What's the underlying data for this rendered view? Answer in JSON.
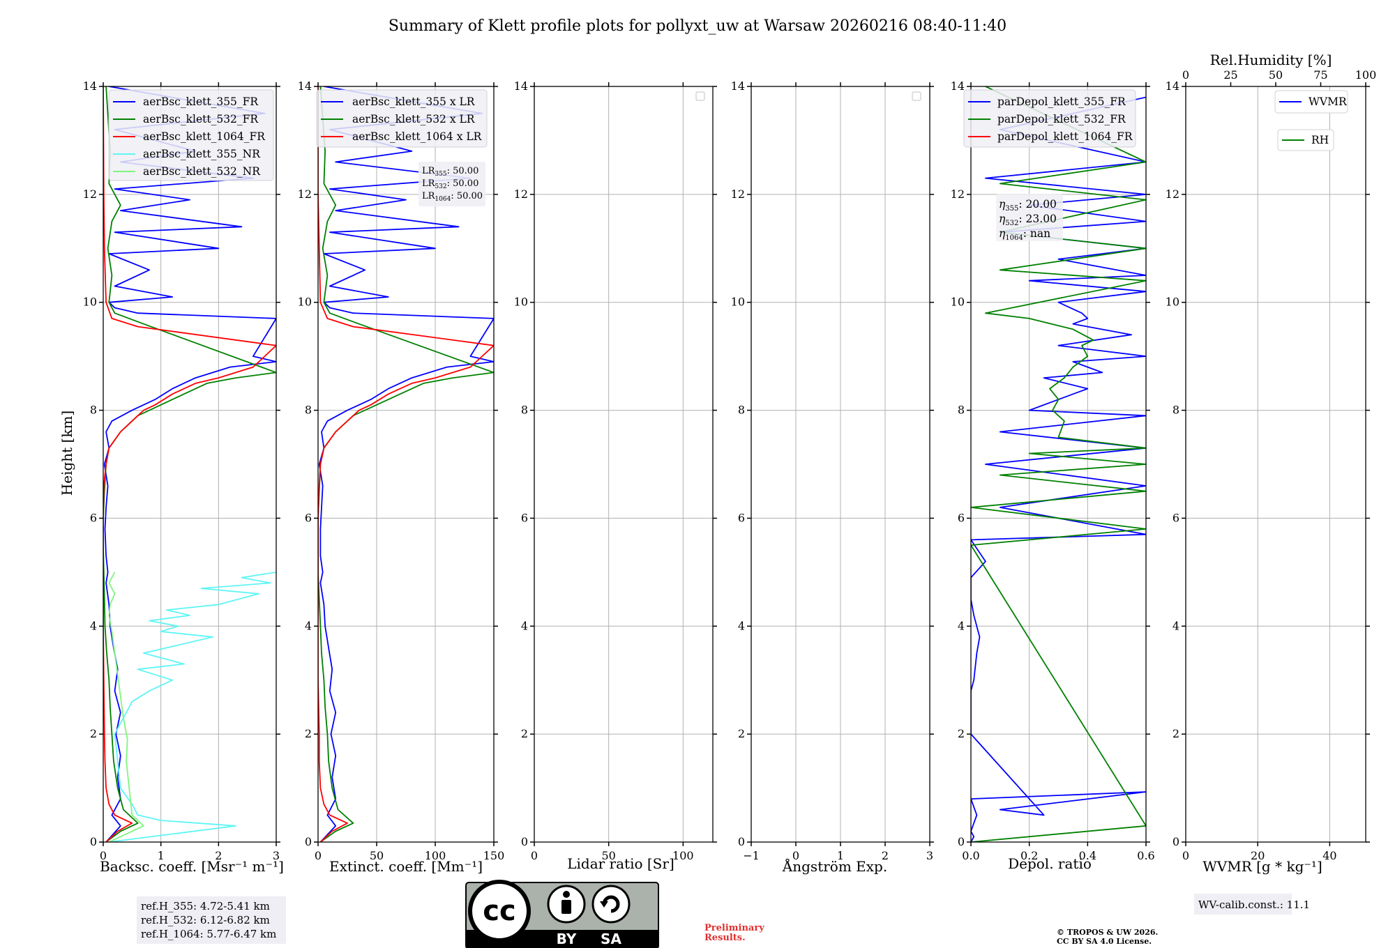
{
  "title": "Summary of Klett profile plots for pollyxt_uw at Warsaw 20260216 08:40-11:40",
  "height_label": "Height [km]",
  "height_range": [
    0,
    14
  ],
  "height_ticks": [
    "0",
    "2",
    "4",
    "6",
    "8",
    "10",
    "12",
    "14"
  ],
  "colors": {
    "c355": "#0000ff",
    "c532": "#008000",
    "c1064": "#ff0000",
    "c355nr": "#5ff5f5",
    "c532nr": "#7ff57f",
    "grid": "#b0b0b0",
    "legend_bg": "#eeeef4",
    "prelim": "#e03030"
  },
  "panels": {
    "backscatter": {
      "xlabel": "Backsc. coeff. [Msr⁻¹ m⁻¹]",
      "xlim": [
        0,
        3
      ],
      "xticks": [
        "0",
        "1",
        "2",
        "3"
      ],
      "legend": [
        "aerBsc_klett_355_FR",
        "aerBsc_klett_532_FR",
        "aerBsc_klett_1064_FR",
        "aerBsc_klett_355_NR",
        "aerBsc_klett_532_NR"
      ]
    },
    "extinction": {
      "xlabel": "Extinct. coeff. [Mm⁻¹]",
      "xlim": [
        0,
        150
      ],
      "xticks": [
        "0",
        "50",
        "100",
        "150"
      ],
      "legend": [
        "aerBsc_klett_355 x LR",
        "aerBsc_klett_532 x LR",
        "aerBsc_klett_1064 x LR"
      ],
      "lr_box": {
        "lr355_label": "LR",
        "lr355_sub": "355",
        "lr355_val": ": 50.00",
        "lr532_label": "LR",
        "lr532_sub": "532",
        "lr532_val": ": 50.00",
        "lr1064_label": "LR",
        "lr1064_sub": "1064",
        "lr1064_val": ": 50.00"
      }
    },
    "lidar_ratio": {
      "xlabel": "Lidar ratio [Sr]",
      "xlim": [
        0,
        120
      ],
      "xticks": [
        "0",
        "50",
        "100"
      ]
    },
    "angstrom": {
      "xlabel": "Ångström Exp.",
      "xlim": [
        -1,
        3
      ],
      "xticks": [
        "−1",
        "0",
        "1",
        "2",
        "3"
      ]
    },
    "depol": {
      "xlabel": "Depol. ratio",
      "xlim": [
        0,
        0.6
      ],
      "xticks": [
        "0.0",
        "0.2",
        "0.4",
        "0.6"
      ],
      "legend": [
        "parDepol_klett_355_FR",
        "parDepol_klett_532_FR",
        "parDepol_klett_1064_FR"
      ],
      "eta_box": {
        "eta355_label": "η",
        "eta355_sub": "355",
        "eta355_val": ": 20.00",
        "eta532_label": "η",
        "eta532_sub": "532",
        "eta532_val": ": 23.00",
        "eta1064_label": "η",
        "eta1064_sub": "1064",
        "eta1064_val": ": nan"
      }
    },
    "wvmr": {
      "xlabel": "WVMR [g * kg⁻¹]",
      "xlim": [
        0,
        50
      ],
      "xticks": [
        "0",
        "20",
        "40"
      ],
      "top_label": "Rel.Humidity [%]",
      "top_lim": [
        0,
        100
      ],
      "top_ticks": [
        "0",
        "25",
        "50",
        "75",
        "100"
      ],
      "legend_wvmr": "WVMR",
      "legend_rh": "RH"
    }
  },
  "ref_heights": [
    "ref.H_355: 4.72-5.41 km",
    "ref.H_532: 6.12-6.82 km",
    "ref.H_1064: 5.77-6.47 km"
  ],
  "wv_calib": "WV-calib.const.: 11.1",
  "license_badge": {
    "cc": "cc",
    "by": "BY",
    "sa": "SA"
  },
  "preliminary": [
    "Preliminary",
    "Results."
  ],
  "copyright": [
    "© TROPOS & UW 2026.",
    "CC BY SA 4.0 License."
  ],
  "chart_data": [
    {
      "type": "line",
      "title": "",
      "xlabel": "Backsc. coeff. [Msr⁻¹ m⁻¹]",
      "ylabel": "Height [km]",
      "xlim": [
        0,
        3
      ],
      "ylim": [
        0,
        14
      ],
      "series": [
        {
          "name": "aerBsc_klett_355_FR",
          "color": "#0000ff",
          "x": [
            0.05,
            0.3,
            0.15,
            0.3,
            0.25,
            0.3,
            0.22,
            0.3,
            0.2,
            0.25,
            0.18,
            0.12,
            0.1,
            0.05,
            0.08,
            0.05,
            0.03,
            0.05,
            0.08,
            0.02,
            0.1,
            0.05,
            0.15,
            0.5,
            0.9,
            1.2,
            1.6,
            2.2,
            3.0,
            2.6,
            3.0,
            0.6,
            0.2,
            0.1,
            1.2,
            0.2,
            0.8,
            0.1,
            2.0,
            0.2,
            2.4,
            0.3,
            1.5,
            0.2,
            2.6,
            0.3,
            1.6,
            0.2,
            2.8,
            0.1
          ],
          "y": [
            0.0,
            0.3,
            0.5,
            0.8,
            1.2,
            1.6,
            2.0,
            2.4,
            2.8,
            3.2,
            3.6,
            4.0,
            4.4,
            4.8,
            5.0,
            5.3,
            5.8,
            6.2,
            6.6,
            7.0,
            7.3,
            7.6,
            7.8,
            8.0,
            8.2,
            8.4,
            8.6,
            8.8,
            8.9,
            9.0,
            9.7,
            9.8,
            9.9,
            10.0,
            10.1,
            10.3,
            10.6,
            10.9,
            11.0,
            11.3,
            11.4,
            11.7,
            11.9,
            12.1,
            12.3,
            12.6,
            12.8,
            13.2,
            13.5,
            14.0
          ]
        },
        {
          "name": "aerBsc_klett_532_FR",
          "color": "#008000",
          "x": [
            0.05,
            0.3,
            0.6,
            0.35,
            0.25,
            0.18,
            0.15,
            0.12,
            0.1,
            0.06,
            0.03,
            0.02,
            0.01,
            0.0,
            0.0,
            0.02,
            0.05,
            0.1,
            0.3,
            0.6,
            1.0,
            1.4,
            1.8,
            2.3,
            3.0,
            0.7,
            0.2,
            0.1,
            0.15,
            0.08,
            0.15,
            0.3,
            0.1,
            0.12,
            0.05
          ],
          "y": [
            0.0,
            0.2,
            0.35,
            0.6,
            1.0,
            1.5,
            2.0,
            2.5,
            3.0,
            3.5,
            4.0,
            4.5,
            5.0,
            5.5,
            6.0,
            6.5,
            7.0,
            7.3,
            7.6,
            7.9,
            8.1,
            8.3,
            8.5,
            8.6,
            8.7,
            9.6,
            9.8,
            10.0,
            10.5,
            11.0,
            11.5,
            11.8,
            12.2,
            12.8,
            14.0
          ]
        },
        {
          "name": "aerBsc_klett_1064_FR",
          "color": "#ff0000",
          "x": [
            0.05,
            0.25,
            0.5,
            0.2,
            0.1,
            0.05,
            0.03,
            0.02,
            0.01,
            0.0,
            0.0,
            0.0,
            0.01,
            0.05,
            0.1,
            0.3,
            0.6,
            0.7,
            0.9,
            1.2,
            1.6,
            2.0,
            2.6,
            2.8,
            3.0,
            0.6,
            0.15,
            0.05,
            0.02,
            0.01,
            0.0
          ],
          "y": [
            0.0,
            0.2,
            0.35,
            0.5,
            0.7,
            1.0,
            1.5,
            2.0,
            3.0,
            4.0,
            5.0,
            6.0,
            6.6,
            7.0,
            7.3,
            7.6,
            7.9,
            8.0,
            8.1,
            8.3,
            8.5,
            8.6,
            8.8,
            9.0,
            9.2,
            9.55,
            9.7,
            10.0,
            11.0,
            12.0,
            14.0
          ]
        },
        {
          "name": "aerBsc_klett_355_NR",
          "color": "#5ff5f5",
          "x": [
            0.1,
            2.3,
            1.0,
            0.6,
            0.5,
            0.3,
            0.25,
            0.2,
            0.5,
            0.8,
            1.2,
            0.6,
            1.4,
            0.7,
            1.9,
            1.0,
            1.3,
            0.8,
            1.5,
            1.1,
            2.0,
            2.7,
            1.7,
            2.9,
            2.4,
            3.0
          ],
          "y": [
            0.0,
            0.3,
            0.4,
            0.5,
            0.7,
            1.0,
            1.5,
            2.0,
            2.6,
            2.8,
            3.0,
            3.2,
            3.3,
            3.5,
            3.8,
            3.9,
            4.0,
            4.1,
            4.2,
            4.3,
            4.4,
            4.6,
            4.7,
            4.8,
            4.9,
            5.0
          ]
        },
        {
          "name": "aerBsc_klett_532_NR",
          "color": "#7ff57f",
          "x": [
            0.1,
            0.7,
            0.5,
            0.45,
            0.4,
            0.42,
            0.35,
            0.3,
            0.25,
            0.2,
            0.15,
            0.1,
            0.12,
            0.2,
            0.15,
            0.1,
            0.15,
            0.2
          ],
          "y": [
            0.0,
            0.3,
            0.5,
            1.0,
            1.5,
            1.9,
            2.3,
            2.7,
            3.1,
            3.5,
            3.9,
            4.2,
            4.4,
            4.6,
            4.7,
            4.8,
            4.9,
            5.0
          ]
        }
      ]
    },
    {
      "type": "line",
      "xlabel": "Extinct. coeff. [Mm⁻¹]",
      "ylabel": "Height [km]",
      "xlim": [
        0,
        150
      ],
      "ylim": [
        0,
        14
      ],
      "series": [
        {
          "name": "aerBsc_klett_355 x LR",
          "color": "#0000ff",
          "x": [
            2,
            15,
            8,
            15,
            12,
            15,
            11,
            15,
            10,
            12,
            9,
            6,
            5,
            2,
            4,
            2,
            2,
            3,
            4,
            1,
            5,
            3,
            8,
            25,
            45,
            60,
            80,
            110,
            150,
            130,
            150,
            30,
            10,
            5,
            60,
            10,
            40,
            5,
            100,
            10,
            120,
            15,
            75,
            10,
            130,
            15,
            80,
            10,
            140,
            5
          ],
          "y": [
            0.0,
            0.3,
            0.5,
            0.8,
            1.2,
            1.6,
            2.0,
            2.4,
            2.8,
            3.2,
            3.6,
            4.0,
            4.4,
            4.8,
            5.0,
            5.3,
            5.8,
            6.2,
            6.6,
            7.0,
            7.3,
            7.6,
            7.8,
            8.0,
            8.2,
            8.4,
            8.6,
            8.8,
            8.9,
            9.0,
            9.7,
            9.8,
            9.9,
            10.0,
            10.1,
            10.3,
            10.6,
            10.9,
            11.0,
            11.3,
            11.4,
            11.7,
            11.9,
            12.1,
            12.3,
            12.6,
            12.8,
            13.2,
            13.5,
            14.0
          ]
        },
        {
          "name": "aerBsc_klett_532 x LR",
          "color": "#008000",
          "x": [
            2,
            15,
            30,
            17,
            12,
            9,
            8,
            6,
            5,
            3,
            2,
            1,
            0,
            0,
            0,
            1,
            2,
            5,
            15,
            30,
            50,
            70,
            90,
            115,
            150,
            35,
            10,
            5,
            8,
            4,
            8,
            15,
            5,
            6,
            2
          ],
          "y": [
            0.0,
            0.2,
            0.35,
            0.6,
            1.0,
            1.5,
            2.0,
            2.5,
            3.0,
            3.5,
            4.0,
            4.5,
            5.0,
            5.5,
            6.0,
            6.5,
            7.0,
            7.3,
            7.6,
            7.9,
            8.1,
            8.3,
            8.5,
            8.6,
            8.7,
            9.6,
            9.8,
            10.0,
            10.5,
            11.0,
            11.5,
            11.8,
            12.2,
            12.8,
            14.0
          ]
        },
        {
          "name": "aerBsc_klett_1064 x LR",
          "color": "#ff0000",
          "x": [
            2,
            12,
            25,
            10,
            5,
            2,
            1,
            1,
            0,
            0,
            0,
            0,
            1,
            2,
            5,
            15,
            30,
            35,
            45,
            60,
            80,
            100,
            130,
            140,
            150,
            30,
            8,
            2,
            1,
            0,
            0
          ],
          "y": [
            0.0,
            0.2,
            0.35,
            0.5,
            0.7,
            1.0,
            1.5,
            2.0,
            3.0,
            4.0,
            5.0,
            6.0,
            6.6,
            7.0,
            7.3,
            7.6,
            7.9,
            8.0,
            8.1,
            8.3,
            8.5,
            8.6,
            8.8,
            9.0,
            9.2,
            9.55,
            9.7,
            10.0,
            11.0,
            12.0,
            14.0
          ]
        }
      ]
    },
    {
      "type": "line",
      "xlabel": "Lidar ratio [Sr]",
      "ylabel": "Height [km]",
      "xlim": [
        0,
        120
      ],
      "ylim": [
        0,
        14
      ],
      "series": []
    },
    {
      "type": "line",
      "xlabel": "Ångström Exp.",
      "ylabel": "Height [km]",
      "xlim": [
        -1,
        3
      ],
      "ylim": [
        0,
        14
      ],
      "series": []
    },
    {
      "type": "line",
      "xlabel": "Depol. ratio",
      "ylabel": "Height [km]",
      "xlim": [
        0,
        0.6
      ],
      "ylim": [
        0,
        14
      ],
      "series": [
        {
          "name": "parDepol_klett_355_FR",
          "color": "#0000ff",
          "x": [
            0.0,
            0.01,
            0.0,
            0.02,
            0.0,
            0.6,
            0.1,
            0.25,
            0.0,
            0.0,
            0.01,
            0.02,
            0.03,
            0.01,
            0.0,
            0.0,
            0.05,
            0.0,
            0.6,
            0.1,
            0.6,
            0.05,
            0.6,
            0.1,
            0.6,
            0.2,
            0.35,
            0.4,
            0.25,
            0.45,
            0.35,
            0.6,
            0.3,
            0.55,
            0.35,
            0.4,
            0.38,
            0.3,
            0.6,
            0.2,
            0.6,
            0.3,
            0.6,
            0.1,
            0.6,
            0.2,
            0.6,
            0.05,
            0.6,
            0.1,
            0.6
          ],
          "y": [
            0.0,
            0.1,
            0.2,
            0.5,
            0.8,
            0.93,
            0.6,
            0.5,
            2.0,
            2.8,
            3.0,
            3.5,
            3.8,
            4.2,
            4.5,
            4.9,
            5.2,
            5.6,
            5.7,
            6.2,
            6.6,
            7.0,
            7.3,
            7.6,
            7.9,
            8.0,
            8.3,
            8.4,
            8.6,
            8.7,
            8.9,
            9.0,
            9.2,
            9.4,
            9.6,
            9.7,
            9.8,
            10.0,
            10.2,
            10.4,
            10.5,
            10.8,
            11.0,
            11.3,
            11.5,
            11.8,
            12.0,
            12.3,
            12.6,
            13.2,
            13.8
          ]
        },
        {
          "name": "parDepol_klett_532_FR",
          "color": "#008000",
          "x": [
            0.0,
            0.6,
            0.0,
            0.6,
            0.0,
            0.6,
            0.1,
            0.6,
            0.2,
            0.6,
            0.3,
            0.32,
            0.28,
            0.3,
            0.27,
            0.32,
            0.35,
            0.4,
            0.38,
            0.42,
            0.35,
            0.2,
            0.05,
            0.6,
            0.1,
            0.6,
            0.1,
            0.6,
            0.1,
            0.6,
            0.05
          ],
          "y": [
            0.0,
            0.3,
            5.5,
            5.8,
            6.2,
            6.5,
            6.8,
            7.0,
            7.2,
            7.3,
            7.5,
            7.8,
            8.0,
            8.2,
            8.4,
            8.6,
            8.8,
            9.0,
            9.2,
            9.3,
            9.5,
            9.7,
            9.8,
            10.4,
            10.6,
            11.0,
            11.3,
            11.9,
            12.2,
            12.6,
            14.0
          ]
        }
      ]
    },
    {
      "type": "line",
      "xlabel": "WVMR [g * kg⁻¹]",
      "ylabel": "Height [km]",
      "xlim": [
        0,
        50
      ],
      "ylim": [
        0,
        14
      ],
      "top_axis": {
        "label": "Rel.Humidity [%]",
        "lim": [
          0,
          100
        ]
      },
      "series": [
        {
          "name": "WVMR",
          "color": "#0000ff",
          "x": [],
          "y": []
        },
        {
          "name": "RH",
          "color": "#008000",
          "x": [],
          "y": []
        }
      ]
    }
  ]
}
